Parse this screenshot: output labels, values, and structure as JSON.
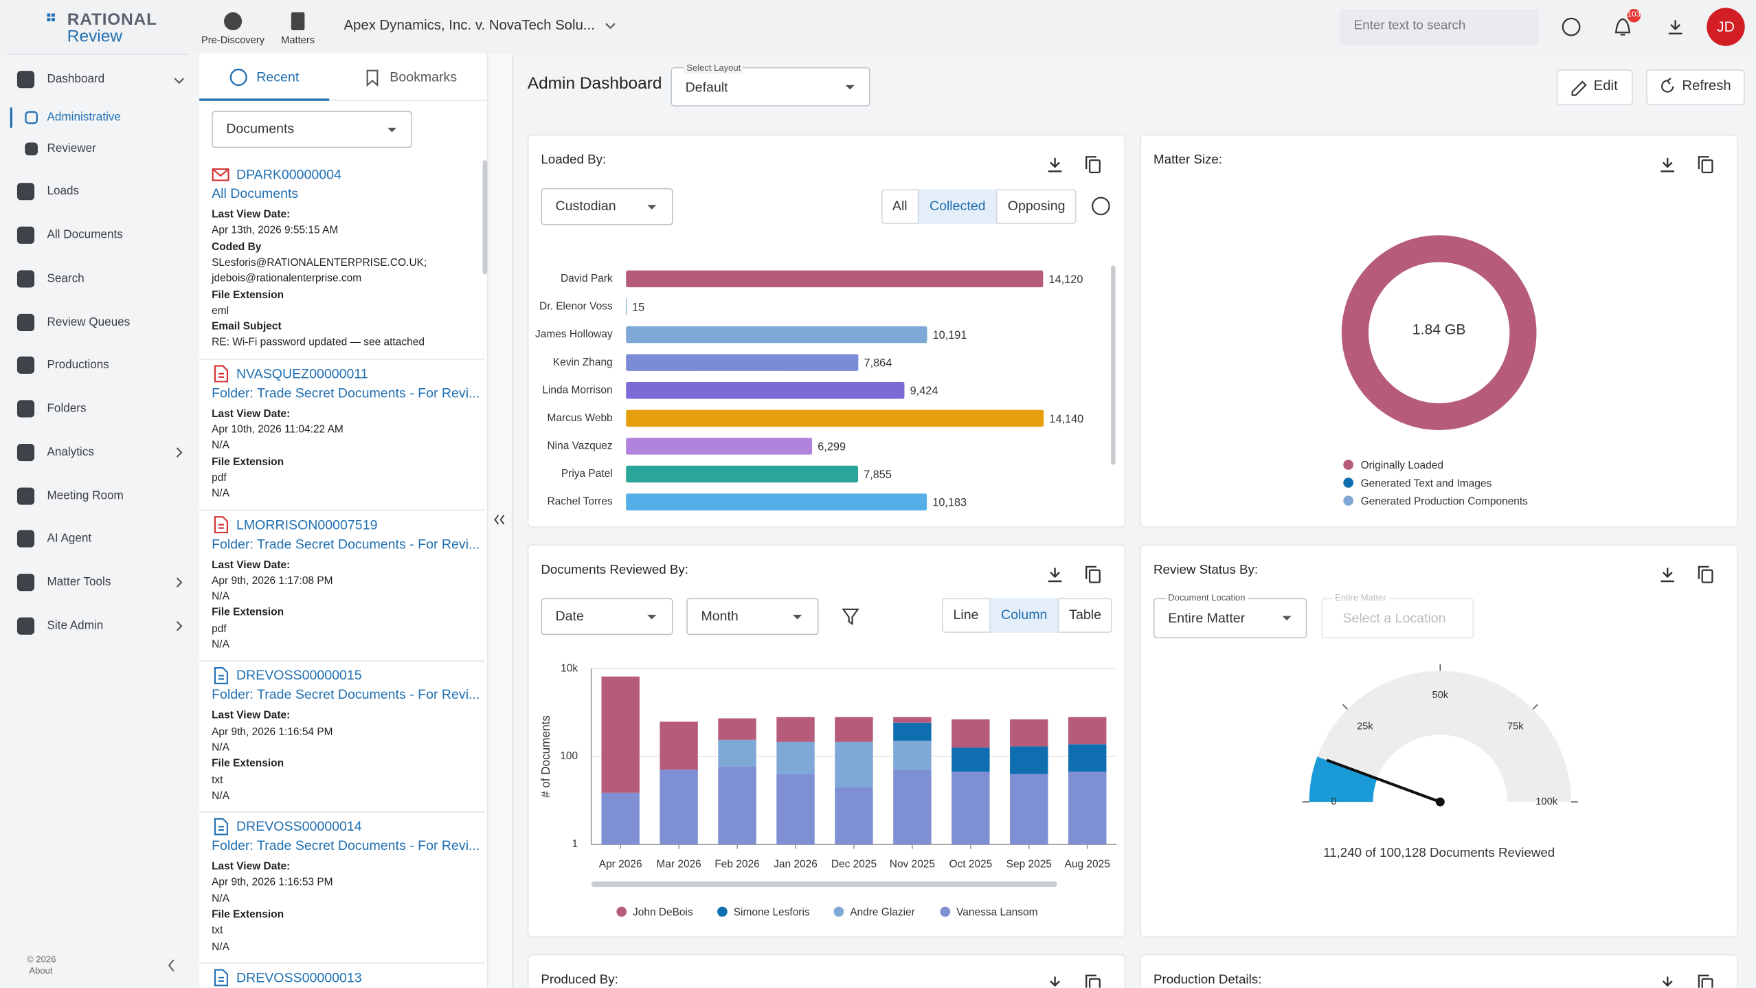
{
  "header": {
    "logo": [
      "RATIONAL",
      "Review"
    ],
    "nav": [
      "Pre-Discovery",
      "Matters"
    ],
    "matter": "Apex Dynamics, Inc. v. NovaTech Solu...",
    "search_placeholder": "Enter text to search",
    "notifications": "103",
    "avatar": "JD"
  },
  "sidebar": {
    "items": [
      "Dashboard",
      "Administrative",
      "Reviewer",
      "Loads",
      "All Documents",
      "Search",
      "Review Queues",
      "Productions",
      "Folders",
      "Analytics",
      "Meeting Room",
      "AI Agent",
      "Matter Tools",
      "Site Admin"
    ],
    "selected": 1,
    "footer": [
      "© 2026",
      "About"
    ]
  },
  "recent": {
    "tabs": [
      "Recent",
      "Bookmarks"
    ],
    "selected": 0,
    "filter": "Documents",
    "items": [
      {
        "id": "DPARK00000004",
        "location": "All Documents",
        "lines": [
          {
            "label": "Last View Date:"
          },
          {
            "text": "Apr 13th, 2026 9:55:15 AM"
          },
          {
            "label": "Coded By"
          },
          {
            "text": "SLesforis@RATIONALENTERPRISE.CO.UK;"
          },
          {
            "text": "jdebois@rationalenterprise.com"
          },
          {
            "label": "File Extension"
          },
          {
            "text": "eml"
          },
          {
            "label": "Email Subject"
          },
          {
            "text": "RE: Wi-Fi password updated — see attached"
          }
        ]
      },
      {
        "id": "NVASQUEZ00000011",
        "location": "Folder: Trade Secret Documents - For Revi...",
        "lines": [
          {
            "label": "Last View Date:"
          },
          {
            "text": "Apr 10th, 2026 11:04:22 AM"
          },
          {
            "text": "N/A"
          },
          {
            "label": "File Extension"
          },
          {
            "text": "pdf"
          },
          {
            "text": "N/A"
          }
        ]
      },
      {
        "id": "LMORRISON00007519",
        "location": "Folder: Trade Secret Documents - For Revi...",
        "lines": [
          {
            "label": "Last View Date:"
          },
          {
            "text": "Apr 9th, 2026 1:17:08 PM"
          },
          {
            "text": "N/A"
          },
          {
            "label": "File Extension"
          },
          {
            "text": "pdf"
          },
          {
            "text": "N/A"
          }
        ]
      },
      {
        "id": "DREVOSS00000015",
        "location": "Folder: Trade Secret Documents - For Revi...",
        "lines": [
          {
            "label": "Last View Date:"
          },
          {
            "text": "Apr 9th, 2026 1:16:54 PM"
          },
          {
            "text": "N/A"
          },
          {
            "label": "File Extension"
          },
          {
            "text": "txt"
          },
          {
            "text": "N/A"
          }
        ]
      },
      {
        "id": "DREVOSS00000014",
        "location": "Folder: Trade Secret Documents - For Revi...",
        "lines": [
          {
            "label": "Last View Date:"
          },
          {
            "text": "Apr 9th, 2026 1:16:53 PM"
          },
          {
            "text": "N/A"
          },
          {
            "label": "File Extension"
          },
          {
            "text": "txt"
          },
          {
            "text": "N/A"
          }
        ]
      },
      {
        "id": "DREVOSS00000013"
      }
    ]
  },
  "dashboard": {
    "title": "Admin Dashboard",
    "layout_label": "Select Layout",
    "layout": "Default",
    "actions": [
      "Edit",
      "Refresh"
    ],
    "loaded_by": {
      "group": "Custodian",
      "filters": [
        "All",
        "Collected",
        "Opposing"
      ],
      "selected": 1
    },
    "reviewed_by": {
      "group": [
        "Date",
        "Month"
      ],
      "views": [
        "Line",
        "Column",
        "Table"
      ],
      "selected": 1
    },
    "review_status": {
      "location_label": "Document Location",
      "location": "Entire Matter",
      "scope_label": "Entire Matter",
      "scope_placeholder": "Select a Location"
    },
    "more": [
      "Produced By:",
      "Production Details:"
    ]
  },
  "chart_data": [
    {
      "type": "hbar",
      "title": "Loaded By:",
      "categories": [
        "David Park",
        "Dr. Elenor Voss",
        "James Holloway",
        "Kevin Zhang",
        "Linda Morrison",
        "Marcus Webb",
        "Nina Vazquez",
        "Priya Patel",
        "Rachel Torres"
      ],
      "values": [
        14120,
        15,
        10191,
        7864,
        9424,
        14140,
        6299,
        7855,
        10183
      ],
      "value_labels": [
        "14,120",
        "15",
        "10,191",
        "7,864",
        "9,424",
        "14,140",
        "6,299",
        "7,855",
        "10,183"
      ],
      "colors": [
        "#b65b7c",
        "#0f6eb0",
        "#7ea9d6",
        "#7b8bd6",
        "#7d6ad6",
        "#e6a00f",
        "#b283dc",
        "#2aa59a",
        "#54aee8"
      ]
    },
    {
      "type": "donut",
      "title": "Matter Size:",
      "center_label": "1.84 GB",
      "categories": [
        "Originally Loaded",
        "Generated Text and Images",
        "Generated Production Components"
      ],
      "values": [
        100,
        0,
        0
      ],
      "colors": [
        "#b65b7c",
        "#0f6eb0",
        "#7ea9d6"
      ]
    },
    {
      "type": "stacked_column",
      "title": "Documents Reviewed By:",
      "y_label": "# of Documents",
      "log_y": true,
      "grid": true,
      "ylim": [
        1,
        10000
      ],
      "yticks": [
        1,
        100,
        {
          "value": 10000,
          "label": "10k"
        }
      ],
      "categories": [
        "Apr 2026",
        "Mar 2026",
        "Feb 2026",
        "Jan 2026",
        "Dec 2025",
        "Nov 2025",
        "Oct 2025",
        "Sep 2025",
        "Aug 2025"
      ],
      "series": [
        {
          "name": "John DeBois",
          "color": "#b65b7c",
          "values": [
            6600,
            570,
            500,
            575,
            575,
            200,
            540,
            530,
            600
          ]
        },
        {
          "name": "Simone Lesforis",
          "color": "#0f6eb0",
          "values": [
            0,
            0,
            0,
            0,
            0,
            360,
            115,
            130,
            145
          ]
        },
        {
          "name": "Andre Glazier",
          "color": "#7ea9d6",
          "values": [
            0,
            0,
            180,
            175,
            195,
            180,
            0,
            0,
            0
          ]
        },
        {
          "name": "Vanessa Lansom",
          "color": "#7f8fd4",
          "values": [
            15,
            50,
            60,
            40,
            20,
            50,
            45,
            40,
            45
          ]
        }
      ]
    },
    {
      "type": "gauge",
      "title": "Review Status By:",
      "value": 11240,
      "color": "#1a9ad6",
      "xlim": [
        0,
        100000
      ],
      "xticks": [
        0,
        {
          "value": 25000,
          "label": "25k"
        },
        {
          "value": 50000,
          "label": "50k"
        },
        {
          "value": 75000,
          "label": "75k"
        },
        {
          "value": 100000,
          "label": "100k"
        }
      ],
      "caption": "11,240 of 100,128 Documents Reviewed"
    }
  ]
}
